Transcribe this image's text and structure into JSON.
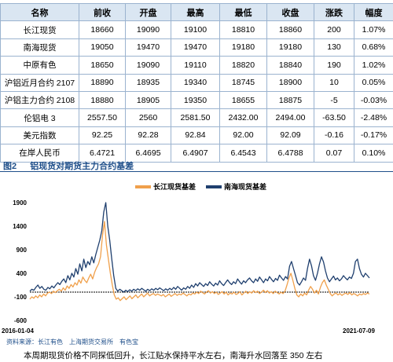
{
  "table": {
    "headers": [
      "名称",
      "前收",
      "开盘",
      "最高",
      "最低",
      "收盘",
      "涨跌",
      "幅度"
    ],
    "rows": [
      [
        "长江现货",
        "18660",
        "19090",
        "19100",
        "18810",
        "18860",
        "200",
        "1.07%"
      ],
      [
        "南海现货",
        "19050",
        "19470",
        "19470",
        "19180",
        "19180",
        "130",
        "0.68%"
      ],
      [
        "中原有色",
        "18650",
        "19090",
        "19110",
        "18820",
        "18840",
        "190",
        "1.02%"
      ],
      [
        "沪铝近月合约 2107",
        "18890",
        "18935",
        "19340",
        "18745",
        "18900",
        "10",
        "0.05%"
      ],
      [
        "沪铝主力合约 2108",
        "18880",
        "18905",
        "19350",
        "18655",
        "18875",
        "-5",
        "-0.03%"
      ],
      [
        "伦铝电 3",
        "2557.50",
        "2560",
        "2581.50",
        "2432.00",
        "2494.00",
        "-63.50",
        "-2.48%"
      ],
      [
        "美元指数",
        "92.25",
        "92.28",
        "92.84",
        "92.00",
        "92.09",
        "-0.16",
        "-0.17%"
      ],
      [
        "在岸人民币",
        "6.4721",
        "6.4695",
        "6.4907",
        "6.4543",
        "6.4788",
        "0.07",
        "0.10%"
      ]
    ]
  },
  "figure": {
    "number": "图2",
    "title": "铝现货对期货主力合约基差",
    "source": "资料来源：长江有色　上海期货交易所　有色宝",
    "summary": "本周期现货价格不同探低回升，长江贴水保持平水左右，南海升水回落至 350 左右"
  },
  "chart_data": {
    "type": "line",
    "title": "",
    "xlabel": "",
    "ylabel": "",
    "x_start_label": "2016-01-04",
    "x_end_label": "2021-07-09",
    "y_ticks": [
      -600,
      -100,
      400,
      900,
      1400,
      1900
    ],
    "ylim": [
      -600,
      1900
    ],
    "zero_line": true,
    "legend_position": "top",
    "series": [
      {
        "name": "长江现货基差",
        "color": "#f0a04b",
        "values": [
          -150,
          -100,
          -130,
          -80,
          -120,
          -60,
          -100,
          -40,
          -80,
          -20,
          0,
          -30,
          20,
          -10,
          30,
          60,
          20,
          90,
          40,
          130,
          80,
          160,
          110,
          200,
          150,
          260,
          190,
          320,
          250,
          200,
          300,
          380,
          280,
          420,
          520,
          600,
          750,
          1200,
          1500,
          1000,
          700,
          400,
          150,
          -60,
          -150,
          -120,
          -180,
          -140,
          -100,
          -160,
          -120,
          -80,
          -140,
          -100,
          -60,
          -120,
          -80,
          -40,
          -100,
          -60,
          -20,
          -80,
          -50,
          -30,
          -70,
          -40,
          -60,
          -80,
          -50,
          -100,
          -70,
          -40,
          -90,
          -60,
          -30,
          -70,
          -40,
          -60,
          -20,
          -50,
          -80,
          -40,
          -60,
          -20,
          -40,
          0,
          -30,
          20,
          -10,
          -40,
          0,
          30,
          -20,
          10,
          -30,
          0,
          -50,
          -20,
          10,
          -40,
          0,
          -60,
          -20,
          -40,
          0,
          -50,
          -30,
          10,
          -60,
          -20,
          20,
          -30,
          10,
          -20,
          30,
          -10,
          20,
          -30,
          0,
          40,
          -10,
          30,
          -20,
          10,
          -30,
          20,
          -10,
          -40,
          0,
          -30,
          20,
          150,
          300,
          400,
          250,
          80,
          -60,
          -100,
          -40,
          -80,
          -20,
          -60,
          40,
          120,
          60,
          -20,
          40,
          -40,
          100,
          200,
          260,
          150,
          60,
          -30,
          -80,
          -40,
          -20,
          -60,
          -30,
          -70,
          -40,
          -20,
          -50,
          -10,
          -60,
          -30,
          -50,
          -80,
          -40,
          -60,
          -30,
          -50,
          -20,
          -40
        ]
      },
      {
        "name": "南海现货基差",
        "color": "#1f3f6e",
        "values": [
          20,
          60,
          40,
          100,
          150,
          80,
          120,
          60,
          40,
          100,
          70,
          130,
          90,
          150,
          200,
          160,
          230,
          280,
          200,
          350,
          260,
          400,
          320,
          500,
          380,
          600,
          450,
          700,
          520,
          650,
          580,
          750,
          620,
          800,
          950,
          1100,
          1300,
          1700,
          1900,
          1400,
          1100,
          700,
          350,
          80,
          20,
          60,
          30,
          0,
          40,
          10,
          50,
          20,
          60,
          30,
          70,
          40,
          80,
          50,
          20,
          60,
          30,
          70,
          40,
          80,
          50,
          90,
          60,
          30,
          70,
          40,
          80,
          50,
          100,
          60,
          120,
          80,
          40,
          90,
          60,
          120,
          80,
          150,
          100,
          180,
          130,
          200,
          160,
          120,
          180,
          140,
          220,
          170,
          130,
          190,
          150,
          240,
          180,
          140,
          200,
          260,
          200,
          160,
          220,
          180,
          280,
          220,
          170,
          240,
          200,
          260,
          300,
          240,
          200,
          280,
          230,
          320,
          260,
          200,
          280,
          240,
          330,
          270,
          220,
          290,
          250,
          360,
          300,
          250,
          330,
          280,
          550,
          650,
          500,
          350,
          200,
          150,
          220,
          300,
          250,
          500,
          700,
          560,
          350,
          250,
          400,
          600,
          750,
          640,
          450,
          300,
          220,
          280,
          340,
          260,
          300,
          240,
          280,
          350,
          300,
          260,
          320,
          290,
          400,
          650,
          700,
          500,
          380,
          320,
          400,
          350,
          300
        ]
      }
    ]
  }
}
